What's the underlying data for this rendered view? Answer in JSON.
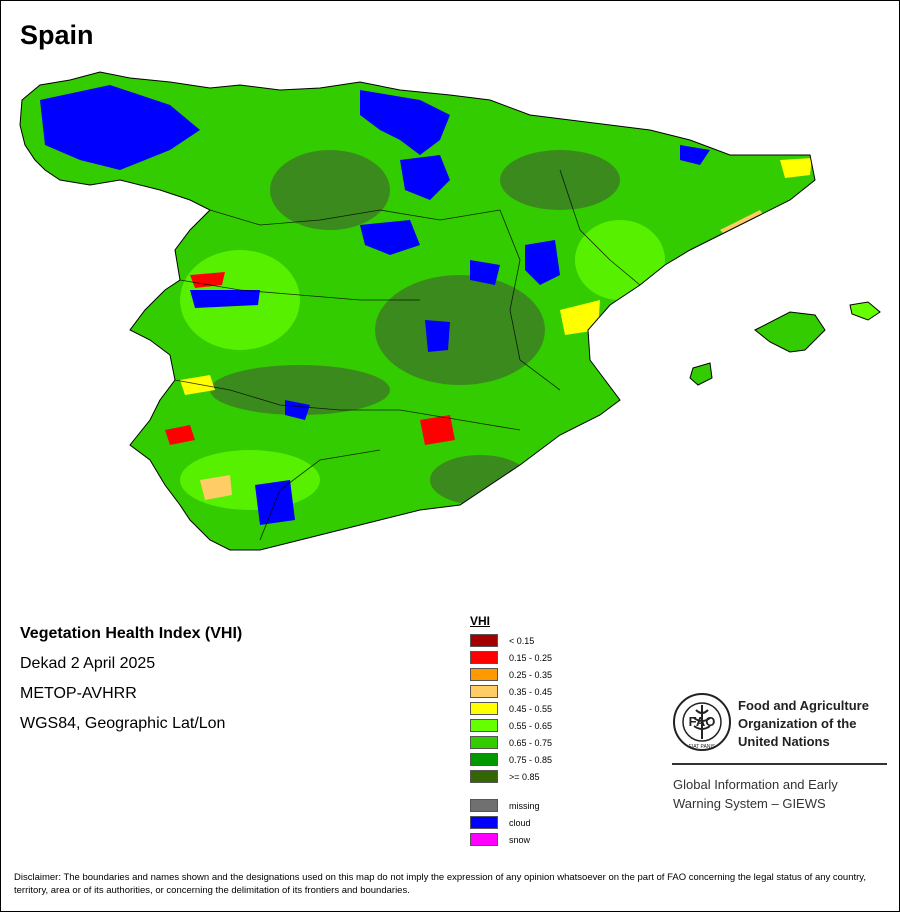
{
  "title": "Spain",
  "info": {
    "line1": "Vegetation Health Index (VHI)",
    "line2": "Dekad 2 April 2025",
    "line3": "METOP-AVHRR",
    "line4": "WGS84, Geographic Lat/Lon"
  },
  "legend": {
    "title": "VHI",
    "classes": [
      {
        "label": "< 0.15",
        "color": "#a50000"
      },
      {
        "label": "0.15 - 0.25",
        "color": "#ff0000"
      },
      {
        "label": "0.25 - 0.35",
        "color": "#ff9900"
      },
      {
        "label": "0.35 - 0.45",
        "color": "#ffcc66"
      },
      {
        "label": "0.45 - 0.55",
        "color": "#ffff00"
      },
      {
        "label": "0.55 - 0.65",
        "color": "#66ff00"
      },
      {
        "label": "0.65 - 0.75",
        "color": "#33cc00"
      },
      {
        "label": "0.75 - 0.85",
        "color": "#009900"
      },
      {
        "label": ">= 0.85",
        "color": "#336600"
      }
    ],
    "other": [
      {
        "label": "missing",
        "color": "#707070"
      },
      {
        "label": "cloud",
        "color": "#0000ff"
      },
      {
        "label": "snow",
        "color": "#ff00ff"
      }
    ]
  },
  "organization": {
    "name_line1": "Food and Agriculture",
    "name_line2": "Organization of the",
    "name_line3": "United Nations",
    "logo_text": "FAO",
    "logo_motto": "FIAT PANIS",
    "system_line1": "Global Information and Early",
    "system_line2": "Warning System – GIEWS"
  },
  "disclaimer": "Disclaimer: The boundaries and names shown and the designations used on this map do not imply the expression of any opinion whatsoever on the part of FAO concerning the legal status of any country, territory, area or of its authorities, or concerning the delimitation of its frontiers and boundaries.",
  "colors": {
    "base_vegetation": "#33cc00",
    "dense_vegetation": "#3b8a1e",
    "cloud": "#0000ff",
    "boundary": "#000000"
  }
}
